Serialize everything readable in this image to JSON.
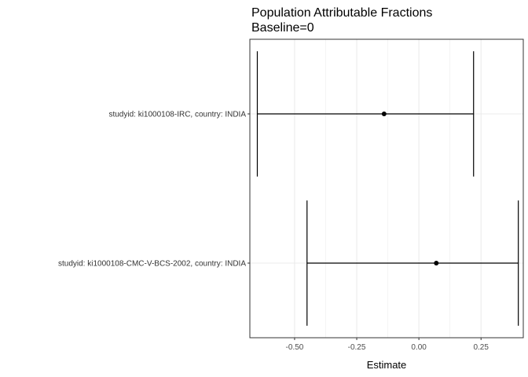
{
  "chart_data": {
    "type": "errorbar",
    "title": "Population Attributable Fractions",
    "subtitle": "Baseline=0",
    "xlabel": "Estimate",
    "ylabel": "",
    "xlim": [
      -0.68,
      0.42
    ],
    "xticks": [
      -0.5,
      -0.25,
      0.0,
      0.25
    ],
    "xtick_labels": [
      "-0.50",
      "-0.25",
      "0.00",
      "0.25"
    ],
    "grid": true,
    "legend": "none",
    "categories": [
      "studyid: ki1000108-IRC, country: INDIA",
      "studyid: ki1000108-CMC-V-BCS-2002, country: INDIA"
    ],
    "points": [
      {
        "category": "studyid: ki1000108-IRC, country: INDIA",
        "estimate": -0.14,
        "lower": -0.65,
        "upper": 0.22
      },
      {
        "category": "studyid: ki1000108-CMC-V-BCS-2002, country: INDIA",
        "estimate": 0.07,
        "lower": -0.45,
        "upper": 0.4
      }
    ],
    "colors": {
      "mark": "#000000",
      "grid": "#ebebeb",
      "panel_border": "#333333"
    }
  }
}
